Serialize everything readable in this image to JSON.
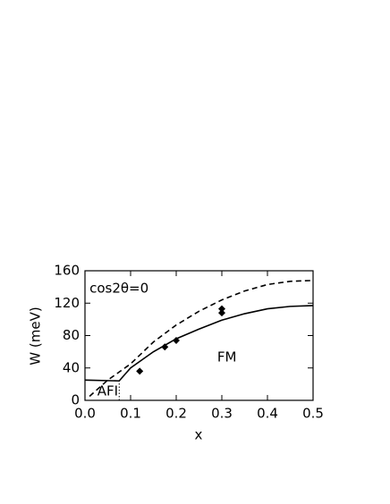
{
  "chart_data": {
    "type": "line",
    "xlabel": "x",
    "ylabel": "W (meV)",
    "xlim": [
      0,
      0.5
    ],
    "ylim": [
      0,
      160
    ],
    "xticks": [
      {
        "value": 0,
        "label": "0.0"
      },
      0.1,
      0.2,
      0.3,
      0.4,
      0.5
    ],
    "yticks": [
      0,
      40,
      80,
      120,
      160
    ],
    "series": [
      {
        "style": "solid",
        "color": "#000000",
        "x": [
          0,
          0.075,
          0.1,
          0.15,
          0.2,
          0.25,
          0.3,
          0.35,
          0.4,
          0.45,
          0.5
        ],
        "values": [
          25,
          24,
          40,
          60,
          76,
          88,
          99,
          107,
          113,
          116,
          117
        ]
      },
      {
        "style": "dashed",
        "color": "#000000",
        "x": [
          0.01,
          0.05,
          0.1,
          0.15,
          0.2,
          0.25,
          0.3,
          0.35,
          0.4,
          0.45,
          0.5
        ],
        "values": [
          5,
          25,
          45,
          72,
          93,
          110,
          124,
          135,
          143,
          147,
          148
        ]
      },
      {
        "style": "dotted",
        "color": "#000000",
        "x": [
          0.075,
          0.075
        ],
        "values": [
          0,
          24
        ]
      },
      {
        "style": "points",
        "color": "#000000",
        "x": [
          0.12,
          0.175,
          0.2,
          0.3,
          0.3
        ],
        "values": [
          36,
          66,
          74,
          108,
          113
        ]
      }
    ],
    "annotations": [
      {
        "text": "cos2θ=0",
        "x": 0.01,
        "y": 138
      },
      {
        "text": "FM",
        "x": 0.29,
        "y": 53
      },
      {
        "text": "AFI",
        "x": 0.027,
        "y": 11
      }
    ]
  }
}
